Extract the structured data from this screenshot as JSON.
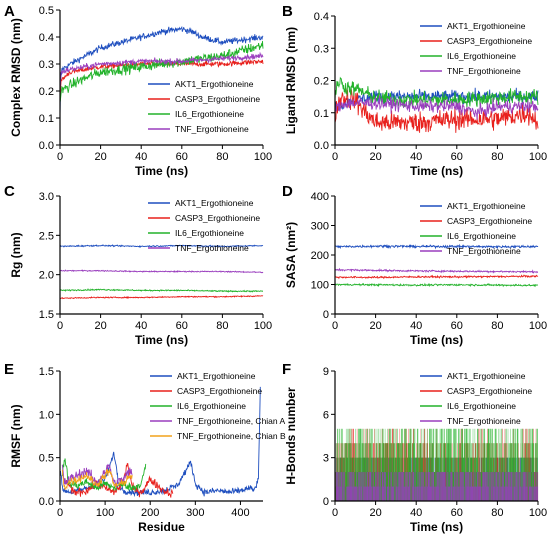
{
  "colors": {
    "AKT1": "#1f4fbf",
    "CASP3": "#e8201c",
    "IL6": "#22b22a",
    "TNF": "#9a3fbe",
    "TNF_B": "#f2a21b"
  },
  "chart_data": [
    {
      "letter": "A",
      "type": "line",
      "xlabel": "Time (ns)",
      "ylabel": "Complex RMSD (nm)",
      "xlim": [
        0,
        100
      ],
      "ylim": [
        0,
        0.5
      ],
      "xticks": [
        0,
        20,
        40,
        60,
        80,
        100
      ],
      "yticks": [
        0.0,
        0.1,
        0.2,
        0.3,
        0.4,
        0.5
      ],
      "tick_decimals": 1,
      "legend": "bottom-right",
      "series": [
        {
          "name": "AKT1_Ergothioneine",
          "color_key": "AKT1",
          "noise": 0.012,
          "x": [
            0,
            0.3,
            1,
            5,
            10,
            20,
            30,
            40,
            50,
            60,
            65,
            70,
            80,
            90,
            100
          ],
          "y": [
            0.1,
            0.24,
            0.28,
            0.3,
            0.32,
            0.36,
            0.38,
            0.4,
            0.42,
            0.43,
            0.42,
            0.4,
            0.38,
            0.39,
            0.4
          ]
        },
        {
          "name": "CASP3_Ergothioneine",
          "color_key": "CASP3",
          "noise": 0.01,
          "x": [
            0,
            0.5,
            5,
            20,
            40,
            60,
            80,
            100
          ],
          "y": [
            0.15,
            0.24,
            0.27,
            0.29,
            0.3,
            0.3,
            0.3,
            0.31
          ]
        },
        {
          "name": "IL6_Ergothioneine",
          "color_key": "IL6",
          "noise": 0.02,
          "x": [
            0,
            0.5,
            5,
            10,
            20,
            40,
            60,
            80,
            90,
            100
          ],
          "y": [
            0.15,
            0.2,
            0.22,
            0.24,
            0.27,
            0.29,
            0.31,
            0.33,
            0.35,
            0.37
          ]
        },
        {
          "name": "TNF_Ergothioneine",
          "color_key": "TNF",
          "noise": 0.01,
          "x": [
            0,
            0.5,
            5,
            20,
            40,
            60,
            80,
            100
          ],
          "y": [
            0.2,
            0.27,
            0.28,
            0.3,
            0.31,
            0.31,
            0.32,
            0.33
          ]
        }
      ]
    },
    {
      "letter": "B",
      "type": "line",
      "xlabel": "Time (ns)",
      "ylabel": "Ligand RMSD (nm)",
      "xlim": [
        0,
        100
      ],
      "ylim": [
        0,
        0.4
      ],
      "xticks": [
        0,
        20,
        40,
        60,
        80,
        100
      ],
      "yticks": [
        0.0,
        0.1,
        0.2,
        0.3,
        0.4
      ],
      "tick_decimals": 1,
      "legend": "top-right",
      "series": [
        {
          "name": "AKT1_Ergothioneine",
          "color_key": "AKT1",
          "noise": 0.02,
          "x": [
            0,
            5,
            10,
            20,
            40,
            60,
            80,
            100
          ],
          "y": [
            0.12,
            0.13,
            0.14,
            0.15,
            0.15,
            0.15,
            0.15,
            0.15
          ]
        },
        {
          "name": "CASP3_Ergothioneine",
          "color_key": "CASP3",
          "noise": 0.035,
          "x": [
            0,
            3,
            10,
            15,
            20,
            40,
            60,
            80,
            95,
            100
          ],
          "y": [
            0.1,
            0.15,
            0.14,
            0.1,
            0.07,
            0.07,
            0.08,
            0.08,
            0.1,
            0.07
          ]
        },
        {
          "name": "IL6_Ergothioneine",
          "color_key": "IL6",
          "noise": 0.025,
          "x": [
            0,
            2,
            5,
            12,
            18,
            30,
            60,
            90,
            100
          ],
          "y": [
            0.15,
            0.2,
            0.18,
            0.17,
            0.15,
            0.14,
            0.14,
            0.15,
            0.15
          ]
        },
        {
          "name": "TNF_Ergothioneine",
          "color_key": "TNF",
          "noise": 0.02,
          "x": [
            0,
            5,
            20,
            40,
            60,
            70,
            80,
            100
          ],
          "y": [
            0.11,
            0.13,
            0.13,
            0.12,
            0.12,
            0.1,
            0.12,
            0.12
          ]
        }
      ]
    },
    {
      "letter": "C",
      "type": "line",
      "xlabel": "Time (ns)",
      "ylabel": "Rg (nm)",
      "xlim": [
        0,
        100
      ],
      "ylim": [
        1.5,
        3.0
      ],
      "xticks": [
        0,
        20,
        40,
        60,
        80,
        100
      ],
      "yticks": [
        1.5,
        2.0,
        2.5,
        3.0
      ],
      "tick_decimals": 1,
      "legend": "top-right",
      "series": [
        {
          "name": "AKT1_Ergothioneine",
          "color_key": "AKT1",
          "noise": 0.008,
          "x": [
            0,
            20,
            40,
            60,
            80,
            100
          ],
          "y": [
            2.36,
            2.37,
            2.36,
            2.37,
            2.36,
            2.37
          ]
        },
        {
          "name": "CASP3_Ergothioneine",
          "color_key": "CASP3",
          "noise": 0.007,
          "x": [
            0,
            20,
            40,
            60,
            80,
            100
          ],
          "y": [
            1.7,
            1.71,
            1.71,
            1.72,
            1.72,
            1.73
          ]
        },
        {
          "name": "IL6_Ergothioneine",
          "color_key": "IL6",
          "noise": 0.008,
          "x": [
            0,
            20,
            40,
            60,
            80,
            100
          ],
          "y": [
            1.8,
            1.81,
            1.8,
            1.8,
            1.79,
            1.79
          ]
        },
        {
          "name": "TNF_Ergothioneine",
          "color_key": "TNF",
          "noise": 0.007,
          "x": [
            0,
            20,
            40,
            60,
            80,
            100
          ],
          "y": [
            2.05,
            2.05,
            2.04,
            2.04,
            2.04,
            2.03
          ]
        }
      ]
    },
    {
      "letter": "D",
      "type": "line",
      "xlabel": "Time (ns)",
      "ylabel": "SASA (nm²)",
      "xlim": [
        0,
        100
      ],
      "ylim": [
        0,
        400
      ],
      "xticks": [
        0,
        20,
        40,
        60,
        80,
        100
      ],
      "yticks": [
        0,
        100,
        200,
        300,
        400
      ],
      "tick_decimals": 0,
      "legend": "top-right",
      "series": [
        {
          "name": "AKT1_Ergothioneine",
          "color_key": "AKT1",
          "noise": 4,
          "x": [
            0,
            20,
            40,
            60,
            80,
            100
          ],
          "y": [
            228,
            230,
            229,
            229,
            228,
            229
          ]
        },
        {
          "name": "CASP3_Ergothioneine",
          "color_key": "CASP3",
          "noise": 3,
          "x": [
            0,
            20,
            40,
            60,
            80,
            100
          ],
          "y": [
            125,
            124,
            126,
            126,
            127,
            128
          ]
        },
        {
          "name": "IL6_Ergothioneine",
          "color_key": "IL6",
          "noise": 3,
          "x": [
            0,
            20,
            40,
            60,
            80,
            100
          ],
          "y": [
            100,
            99,
            98,
            99,
            98,
            97
          ]
        },
        {
          "name": "TNF_Ergothioneine",
          "color_key": "TNF",
          "noise": 3,
          "x": [
            0,
            20,
            40,
            60,
            80,
            100
          ],
          "y": [
            150,
            148,
            146,
            145,
            144,
            143
          ]
        }
      ]
    },
    {
      "letter": "E",
      "type": "line",
      "xlabel": "Residue",
      "ylabel": "RMSF (nm)",
      "xlim": [
        0,
        450
      ],
      "ylim": [
        0,
        1.5
      ],
      "xticks": [
        0,
        100,
        200,
        300,
        400
      ],
      "yticks": [
        0.0,
        0.5,
        1.0,
        1.5
      ],
      "tick_decimals": 1,
      "legend": "top-right",
      "series": [
        {
          "name": "AKT1_Ergothioneine",
          "color_key": "AKT1",
          "noise": 0.04,
          "x": [
            1,
            5,
            10,
            30,
            60,
            100,
            120,
            130,
            140,
            170,
            200,
            230,
            260,
            290,
            300,
            320,
            350,
            380,
            400,
            420,
            430,
            440,
            444
          ],
          "y": [
            0.35,
            0.15,
            0.12,
            0.1,
            0.15,
            0.25,
            0.55,
            0.2,
            0.12,
            0.1,
            0.1,
            0.12,
            0.18,
            0.45,
            0.2,
            0.1,
            0.12,
            0.1,
            0.12,
            0.15,
            0.12,
            0.25,
            1.3
          ]
        },
        {
          "name": "CASP3_Ergothioneine",
          "color_key": "CASP3",
          "noise": 0.05,
          "x": [
            10,
            30,
            60,
            80,
            100,
            120,
            140,
            150,
            160,
            180,
            200,
            230,
            250
          ],
          "y": [
            0.25,
            0.1,
            0.12,
            0.2,
            0.15,
            0.1,
            0.2,
            0.45,
            0.15,
            0.1,
            0.25,
            0.12,
            0.08
          ]
        },
        {
          "name": "IL6_Ergothioneine",
          "color_key": "IL6",
          "noise": 0.05,
          "x": [
            5,
            10,
            20,
            40,
            60,
            80,
            100,
            120,
            140,
            160,
            180,
            190
          ],
          "y": [
            0.3,
            0.5,
            0.2,
            0.18,
            0.22,
            0.15,
            0.2,
            0.15,
            0.2,
            0.15,
            0.2,
            0.4
          ]
        },
        {
          "name": "TNF_Ergothioneine, Chian A",
          "color_key": "TNF",
          "noise": 0.06,
          "x": [
            5,
            10,
            20,
            40,
            60,
            80,
            100,
            110,
            120,
            140,
            155,
            160
          ],
          "y": [
            0.4,
            0.2,
            0.25,
            0.3,
            0.35,
            0.2,
            0.35,
            0.4,
            0.2,
            0.25,
            0.35,
            0.3
          ]
        },
        {
          "name": "TNF_Ergothioneine, Chian B",
          "color_key": "TNF_B",
          "noise": 0.05,
          "x": [
            5,
            10,
            20,
            40,
            60,
            80,
            100,
            110,
            120,
            140,
            155,
            160
          ],
          "y": [
            0.35,
            0.15,
            0.22,
            0.25,
            0.3,
            0.18,
            0.3,
            0.35,
            0.18,
            0.2,
            0.3,
            0.25
          ]
        }
      ]
    },
    {
      "letter": "F",
      "type": "bar",
      "xlabel": "Time (ns)",
      "ylabel": "H-Bonds number",
      "xlim": [
        0,
        100
      ],
      "ylim": [
        0,
        9
      ],
      "xticks": [
        0,
        20,
        40,
        60,
        80,
        100
      ],
      "yticks": [
        0,
        3,
        6,
        9
      ],
      "tick_decimals": 0,
      "legend": "top-right",
      "series": [
        {
          "name": "AKT1_Ergothioneine",
          "color_key": "AKT1",
          "typical": [
            1,
            3
          ],
          "max": 3
        },
        {
          "name": "CASP3_Ergothioneine",
          "color_key": "CASP3",
          "typical": [
            0,
            4
          ],
          "max": 5
        },
        {
          "name": "IL6_Ergothioneine",
          "color_key": "IL6",
          "typical": [
            0,
            5
          ],
          "max": 5
        },
        {
          "name": "TNF_Ergothioneine",
          "color_key": "TNF",
          "typical": [
            0,
            2
          ],
          "max": 2
        }
      ]
    }
  ]
}
